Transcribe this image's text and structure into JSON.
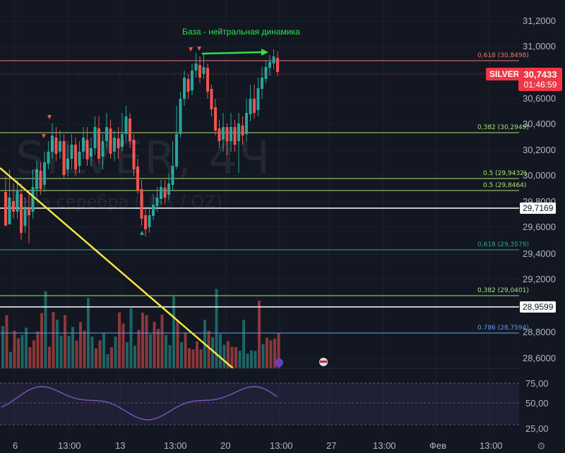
{
  "chart": {
    "annotation": "База - нейтральная динамика",
    "watermark_symbol": "SILVER, 4Ч",
    "watermark_desc": "Цена серебра (US$ / OZ)",
    "symbol": "SILVER",
    "last_price": "30,7433",
    "countdown": "01:46:59",
    "price_axis": [
      "31,2000",
      "31,0000",
      "30,8000",
      "30,6000",
      "30,4000",
      "30,2000",
      "30,0000",
      "29,8000",
      "29,6000",
      "29,4000",
      "29,2000",
      "29,0000",
      "28,8000",
      "28,6000"
    ],
    "price_labels": [
      {
        "text": "29,7169",
        "style": "white"
      },
      {
        "text": "28,9599",
        "style": "white"
      }
    ],
    "fib_levels": [
      {
        "label": "0,618 (30,8498)",
        "color": "#f0766b"
      },
      {
        "label": "0,382 (30,2949)",
        "color": "#a6e07a"
      },
      {
        "label": "0.5 (29,9432)",
        "color": "#a6e07a"
      },
      {
        "label": "0.5 (29,8464)",
        "color": "#a6e07a"
      },
      {
        "label": "0,618 (29,3579)",
        "color": "#26a69a"
      },
      {
        "label": "0,382 (29,0401)",
        "color": "#a6e07a"
      },
      {
        "label": "0.786 (28,7594)",
        "color": "#5b9cf6"
      }
    ],
    "rsi_axis": [
      "75,00",
      "50,00",
      "25,00"
    ],
    "time_axis": [
      "6",
      "13:00",
      "13",
      "13:00",
      "20",
      "13:00",
      "27",
      "13:00",
      "Фев",
      "13:00"
    ],
    "colors": {
      "up": "#26a69a",
      "down": "#ef5350",
      "background": "#131722",
      "trendline": "#f5e642",
      "rsi": "#7e57c2"
    }
  }
}
